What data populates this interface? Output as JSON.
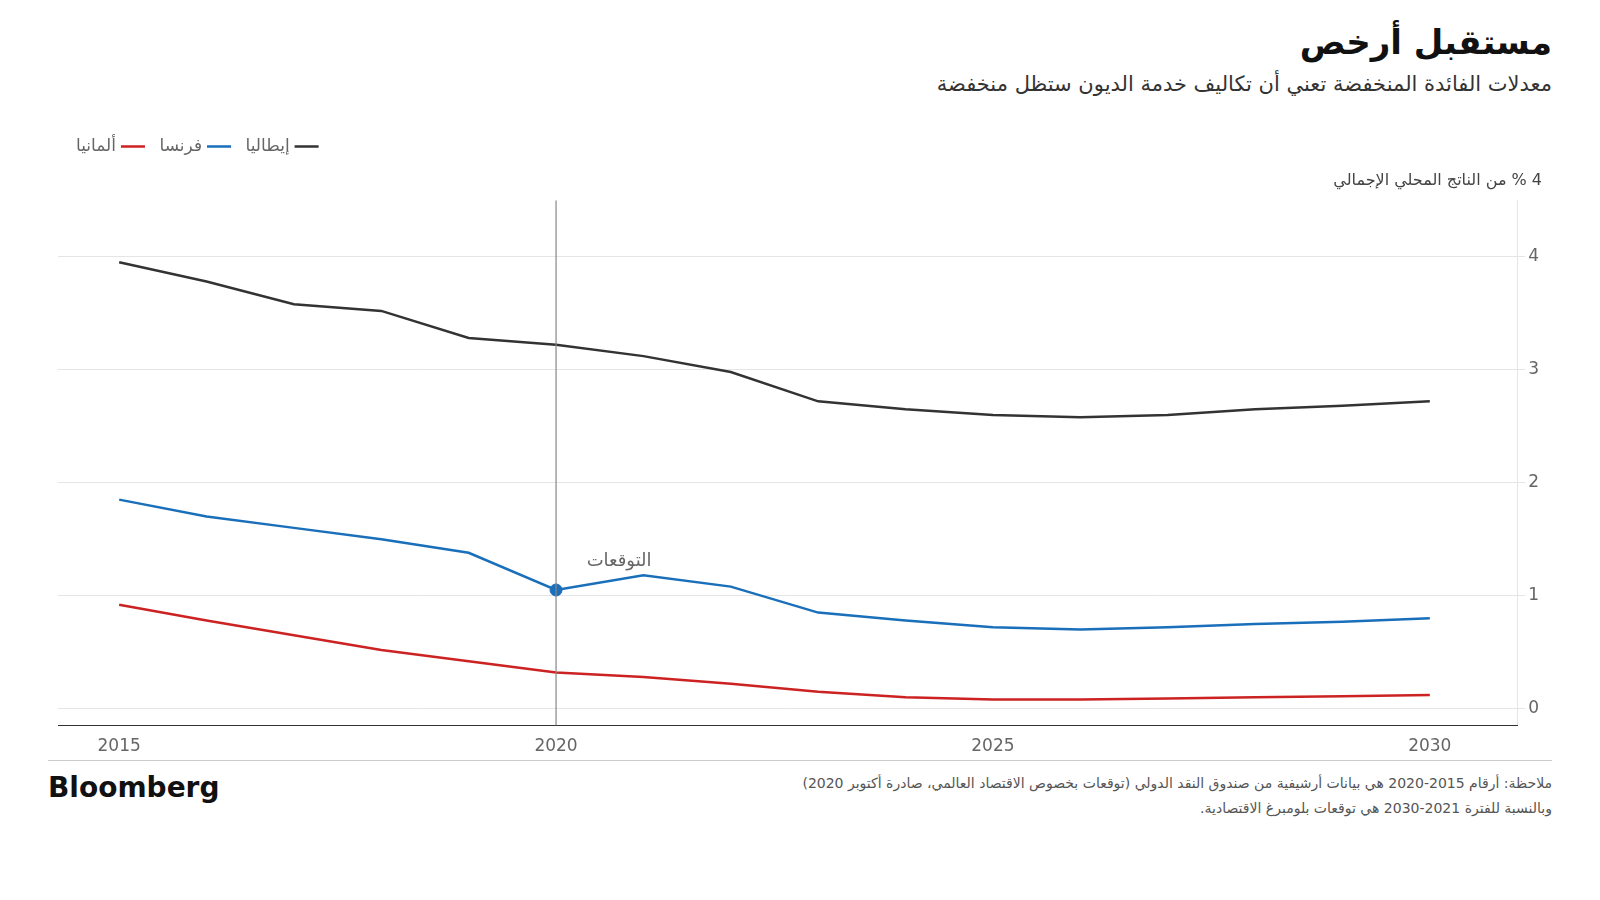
{
  "chart_data": {
    "type": "line",
    "title": "مستقبل أرخص",
    "subtitle": "معدلات الفائدة المنخفضة تعني أن تكاليف خدمة الديون ستظل منخفضة",
    "ylabel": "4 % من الناتج المحلي الإجمالي",
    "x": [
      2015,
      2016,
      2017,
      2018,
      2019,
      2020,
      2021,
      2022,
      2023,
      2024,
      2025,
      2026,
      2027,
      2028,
      2029,
      2030
    ],
    "series": [
      {
        "name": "إيطاليا",
        "color": "#333333",
        "values": [
          3.95,
          3.78,
          3.58,
          3.52,
          3.28,
          3.22,
          3.12,
          2.98,
          2.72,
          2.65,
          2.6,
          2.58,
          2.6,
          2.65,
          2.68,
          2.72
        ]
      },
      {
        "name": "فرنسا",
        "color": "#1a6fba",
        "values": [
          1.85,
          1.7,
          1.6,
          1.5,
          1.38,
          1.05,
          1.18,
          1.08,
          0.85,
          0.78,
          0.72,
          0.7,
          0.72,
          0.75,
          0.77,
          0.8
        ]
      },
      {
        "name": "ألمانيا",
        "color": "#cc2222",
        "values": [
          0.92,
          0.78,
          0.65,
          0.52,
          0.42,
          0.32,
          0.28,
          0.22,
          0.15,
          0.1,
          0.08,
          0.08,
          0.09,
          0.1,
          0.11,
          0.12
        ]
      }
    ],
    "xlim": [
      2014.3,
      2031.0
    ],
    "ylim": [
      -0.15,
      4.5
    ],
    "xticks": [
      2015,
      2020,
      2025,
      2030
    ],
    "yticks": [
      0,
      1,
      2,
      3,
      4
    ],
    "grid": "y",
    "legend": "top",
    "vertical_line": {
      "x": 2020,
      "color": "#888888"
    },
    "points": [
      {
        "x": 2020,
        "y": 1.05,
        "color": "#1a6fba"
      }
    ],
    "annotations": [
      {
        "text": "التوقعات",
        "x": 2020.35,
        "y": 1.22
      }
    ],
    "notes": [
      "ملاحظة: أرقام 2015-2020 هي بيانات أرشيفية من صندوق النقد الدولي (توقعات بخصوص الاقتصاد العالمي، صادرة أكتوبر 2020)",
      "وبالنسبة للفترة 2021-2030 هي توقعات بلومبرغ الاقتصادية."
    ],
    "brand": "Bloomberg"
  }
}
